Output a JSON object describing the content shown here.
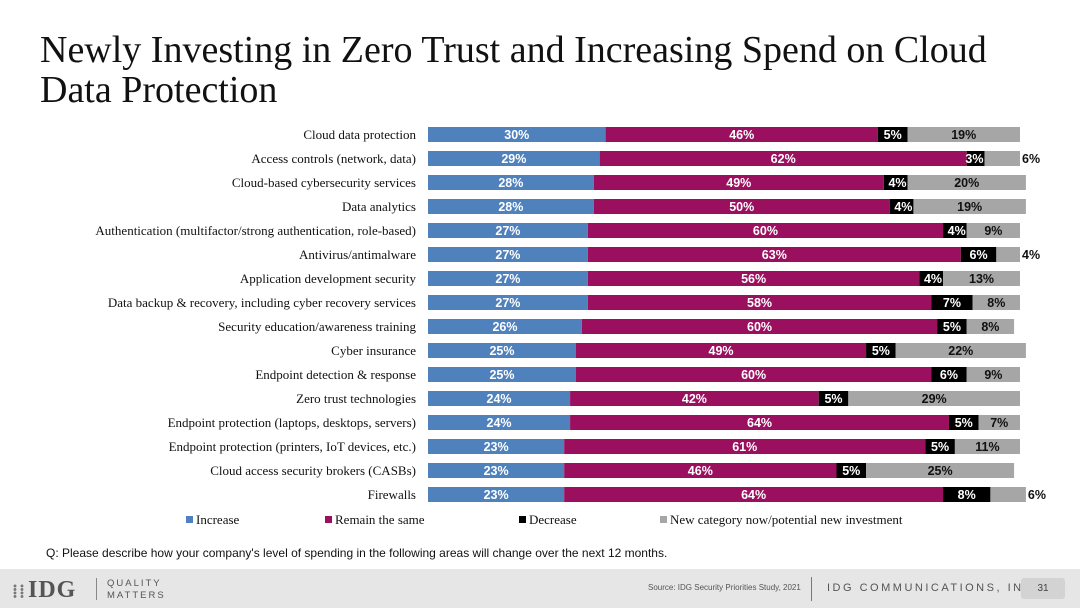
{
  "title": "Newly Investing in Zero Trust and Increasing Spend on Cloud Data Protection",
  "question": "Q:  Please describe how your company's level of spending in the following areas will change over the next 12 months.",
  "footer": {
    "logo": "IDG",
    "tagline_line1": "QUALITY",
    "tagline_line2": "MATTERS",
    "source": "Source: IDG Security Priorities Study, 2021",
    "company": "IDG COMMUNICATIONS, INC.",
    "page": "31"
  },
  "chart_data": {
    "type": "bar",
    "orientation": "horizontal",
    "stacked": true,
    "percent_suffix": "%",
    "xlim": [
      0,
      100
    ],
    "legend_position": "bottom",
    "categories": [
      "Cloud data protection",
      "Access controls (network, data)",
      "Cloud-based cybersecurity services",
      "Data analytics",
      "Authentication (multifactor/strong authentication, role-based)",
      "Antivirus/antimalware",
      "Application development security",
      "Data backup & recovery, including cyber recovery services",
      "Security education/awareness training",
      "Cyber insurance",
      "Endpoint detection & response",
      "Zero trust technologies",
      "Endpoint protection (laptops, desktops, servers)",
      "Endpoint protection (printers, IoT devices, etc.)",
      "Cloud access security brokers (CASBs)",
      "Firewalls"
    ],
    "series": [
      {
        "name": "Increase",
        "color": "#4f81bd",
        "values": [
          30,
          29,
          28,
          28,
          27,
          27,
          27,
          27,
          26,
          25,
          25,
          24,
          24,
          23,
          23,
          23
        ]
      },
      {
        "name": "Remain the same",
        "color": "#9b0f5f",
        "values": [
          46,
          62,
          49,
          50,
          60,
          63,
          56,
          58,
          60,
          49,
          60,
          42,
          64,
          61,
          46,
          64
        ]
      },
      {
        "name": "Decrease",
        "color": "#000000",
        "values": [
          5,
          3,
          4,
          4,
          4,
          6,
          4,
          7,
          5,
          5,
          6,
          5,
          5,
          5,
          5,
          8
        ]
      },
      {
        "name": "New category now/potential new investment",
        "color": "#a6a6a6",
        "values": [
          19,
          6,
          20,
          19,
          9,
          4,
          13,
          8,
          8,
          22,
          9,
          29,
          7,
          11,
          25,
          6
        ]
      }
    ]
  }
}
